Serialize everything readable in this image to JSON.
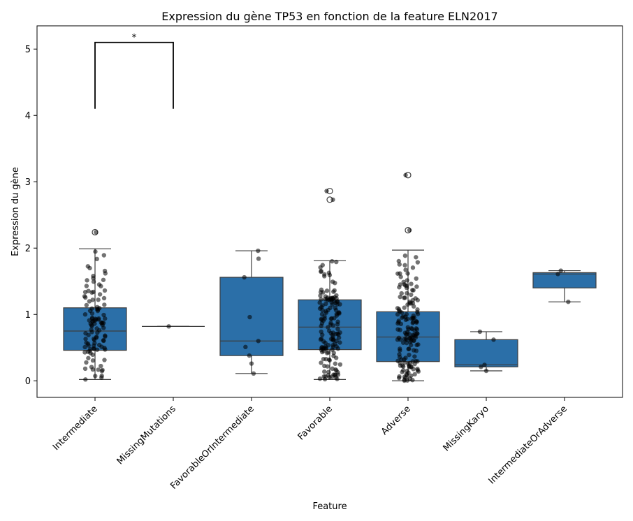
{
  "chart_data": {
    "type": "box",
    "title": "Expression du gène TP53 en fonction de la feature ELN2017",
    "xlabel": "Feature",
    "ylabel": "Expression du gène",
    "ylim": [
      -0.25,
      5.35
    ],
    "yticks": [
      0,
      1,
      2,
      3,
      4,
      5
    ],
    "grid": false,
    "box_color": "#2b6fa8",
    "point_color": "#000000",
    "categories": [
      "Intermediate",
      "MissingMutations",
      "FavorableOrIntermediate",
      "Favorable",
      "Adverse",
      "MissingKaryo",
      "IntermediateOrAdverse"
    ],
    "boxes": [
      {
        "category": "Intermediate",
        "whisker_low": 0.02,
        "q1": 0.46,
        "median": 0.75,
        "q3": 1.1,
        "whisker_high": 1.99,
        "outliers": [
          2.24
        ]
      },
      {
        "category": "MissingMutations",
        "whisker_low": 0.82,
        "q1": 0.82,
        "median": 0.82,
        "q3": 0.82,
        "whisker_high": 0.82,
        "outliers": []
      },
      {
        "category": "FavorableOrIntermediate",
        "whisker_low": 0.11,
        "q1": 0.38,
        "median": 0.6,
        "q3": 1.56,
        "whisker_high": 1.96,
        "outliers": []
      },
      {
        "category": "Favorable",
        "whisker_low": 0.02,
        "q1": 0.47,
        "median": 0.81,
        "q3": 1.22,
        "whisker_high": 1.81,
        "outliers": [
          2.73,
          2.86
        ]
      },
      {
        "category": "Adverse",
        "whisker_low": 0.0,
        "q1": 0.29,
        "median": 0.66,
        "q3": 1.04,
        "whisker_high": 1.97,
        "outliers": [
          2.27,
          3.1
        ]
      },
      {
        "category": "MissingKaryo",
        "whisker_low": 0.15,
        "q1": 0.21,
        "median": 0.24,
        "q3": 0.62,
        "whisker_high": 0.74,
        "outliers": []
      },
      {
        "category": "IntermediateOrAdverse",
        "whisker_low": 1.19,
        "q1": 1.4,
        "median": 1.61,
        "q3": 1.63,
        "whisker_high": 1.66,
        "outliers": []
      }
    ],
    "points": [
      {
        "category": "FavorableOrIntermediate",
        "values": [
          1.96,
          1.84,
          1.56,
          0.96,
          0.6,
          0.51,
          0.38,
          0.26,
          0.11
        ]
      },
      {
        "category": "MissingMutations",
        "values": [
          0.82
        ]
      },
      {
        "category": "MissingKaryo",
        "values": [
          0.74,
          0.62,
          0.24,
          0.21,
          0.15
        ]
      },
      {
        "category": "IntermediateOrAdverse",
        "values": [
          1.66,
          1.61,
          1.19
        ]
      }
    ],
    "jitter_counts": [
      {
        "category": "Intermediate",
        "n": 110
      },
      {
        "category": "Favorable",
        "n": 150
      },
      {
        "category": "Adverse",
        "n": 160
      }
    ],
    "annotations": [
      {
        "text": "*",
        "between": [
          "Intermediate",
          "MissingMutations"
        ],
        "y_bottom": 4.1,
        "y_top": 5.1
      }
    ]
  }
}
